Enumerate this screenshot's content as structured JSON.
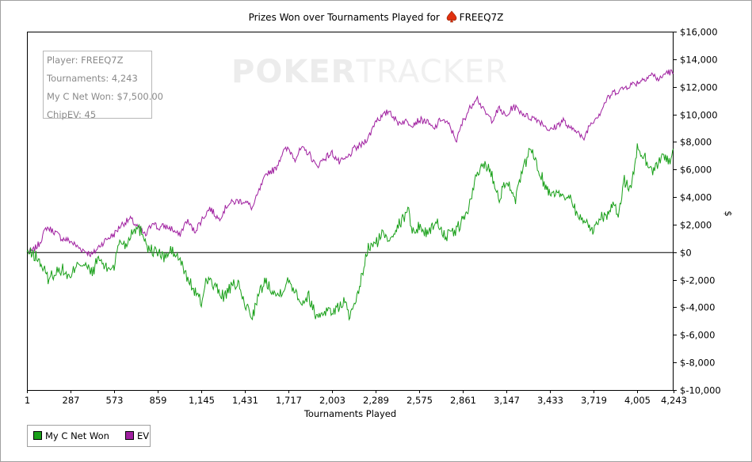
{
  "chart_data": {
    "type": "line",
    "title": "Prizes Won over Tournaments Played for",
    "player_name": "FREEQ7Z",
    "xlabel": "Tournaments Played",
    "ylabel": "$",
    "xlim": [
      1,
      4243
    ],
    "ylim": [
      -10000,
      16000
    ],
    "x_ticks": [
      "1",
      "287",
      "573",
      "859",
      "1,145",
      "1,431",
      "1,717",
      "2,003",
      "2,289",
      "2,575",
      "2,861",
      "3,147",
      "3,433",
      "3,719",
      "4,005",
      "4,243"
    ],
    "y_ticks": [
      "$16,000",
      "$14,000",
      "$12,000",
      "$10,000",
      "$8,000",
      "$6,000",
      "$4,000",
      "$2,000",
      "$0",
      "$-2,000",
      "$-4,000",
      "$-6,000",
      "$-8,000",
      "$-10,000"
    ],
    "y_tick_values": [
      16000,
      14000,
      12000,
      10000,
      8000,
      6000,
      4000,
      2000,
      0,
      -2000,
      -4000,
      -6000,
      -8000,
      -10000
    ],
    "grid": false,
    "legend_position": "bottom-left",
    "series": [
      {
        "name": "My C Net Won",
        "color": "#19a019",
        "x": [
          1,
          60,
          100,
          140,
          180,
          230,
          287,
          330,
          380,
          430,
          470,
          520,
          573,
          610,
          650,
          700,
          760,
          800,
          859,
          900,
          950,
          1000,
          1050,
          1100,
          1145,
          1180,
          1230,
          1290,
          1340,
          1380,
          1431,
          1480,
          1520,
          1560,
          1600,
          1640,
          1717,
          1760,
          1800,
          1850,
          1900,
          1960,
          2003,
          2040,
          2080,
          2120,
          2160,
          2200,
          2240,
          2289,
          2330,
          2380,
          2420,
          2460,
          2500,
          2540,
          2575,
          2620,
          2660,
          2700,
          2750,
          2800,
          2861,
          2900,
          2950,
          3000,
          3040,
          3100,
          3147,
          3200,
          3250,
          3300,
          3350,
          3400,
          3433,
          3480,
          3520,
          3560,
          3600,
          3650,
          3680,
          3719,
          3760,
          3800,
          3840,
          3880,
          3920,
          3960,
          4005,
          4050,
          4100,
          4150,
          4190,
          4220,
          4243
        ],
        "y": [
          0,
          -300,
          -1000,
          -1900,
          -1500,
          -1200,
          -2000,
          -600,
          -1000,
          -1500,
          -400,
          -1200,
          -1000,
          900,
          500,
          1800,
          1500,
          200,
          0,
          -400,
          100,
          -500,
          -1800,
          -2800,
          -3700,
          -1800,
          -2500,
          -3200,
          -2600,
          -2200,
          -3800,
          -4600,
          -3200,
          -2100,
          -2500,
          -3200,
          -2100,
          -2700,
          -3600,
          -3200,
          -4700,
          -4200,
          -4300,
          -4100,
          -3500,
          -4700,
          -3800,
          -1600,
          300,
          600,
          1300,
          1000,
          1800,
          2200,
          3200,
          1200,
          2000,
          1300,
          1900,
          2100,
          1100,
          1400,
          2300,
          3200,
          5500,
          6500,
          5900,
          4000,
          5300,
          3600,
          5700,
          7500,
          6300,
          4800,
          4300,
          4500,
          3800,
          4300,
          3000,
          2200,
          2100,
          1500,
          2700,
          2600,
          3300,
          2800,
          5200,
          4500,
          7500,
          7000,
          5800,
          6600,
          7100,
          6400,
          7500
        ]
      },
      {
        "name": "EV",
        "color": "#a020a0",
        "x": [
          1,
          40,
          80,
          130,
          180,
          230,
          287,
          330,
          380,
          430,
          480,
          530,
          573,
          620,
          680,
          730,
          780,
          830,
          859,
          900,
          950,
          1000,
          1050,
          1100,
          1145,
          1200,
          1260,
          1320,
          1380,
          1431,
          1480,
          1530,
          1580,
          1630,
          1680,
          1717,
          1760,
          1800,
          1850,
          1900,
          1950,
          2003,
          2050,
          2100,
          2150,
          2200,
          2250,
          2289,
          2330,
          2380,
          2430,
          2480,
          2530,
          2575,
          2620,
          2670,
          2720,
          2770,
          2820,
          2861,
          2900,
          2950,
          3000,
          3050,
          3100,
          3147,
          3190,
          3240,
          3290,
          3340,
          3390,
          3433,
          3480,
          3520,
          3560,
          3600,
          3650,
          3690,
          3719,
          3760,
          3800,
          3850,
          3900,
          3950,
          4005,
          4050,
          4100,
          4150,
          4200,
          4243
        ],
        "y": [
          0,
          100,
          600,
          1800,
          1500,
          1000,
          800,
          400,
          100,
          -200,
          500,
          1000,
          1300,
          2000,
          2400,
          1800,
          1200,
          2300,
          1700,
          1900,
          1700,
          1200,
          2300,
          1500,
          2300,
          3200,
          2400,
          3500,
          3700,
          3700,
          3200,
          4600,
          5800,
          6000,
          7300,
          7500,
          6800,
          7500,
          7200,
          6200,
          6800,
          7200,
          6500,
          6800,
          7500,
          7800,
          8500,
          9600,
          9800,
          10300,
          9400,
          9500,
          9300,
          9600,
          9500,
          8900,
          9700,
          9200,
          8100,
          9500,
          10300,
          11300,
          10200,
          9600,
          10400,
          9800,
          10600,
          10200,
          9800,
          9700,
          9300,
          8800,
          9200,
          9600,
          8900,
          9000,
          8100,
          9200,
          9600,
          10100,
          11000,
          11600,
          11800,
          12100,
          12300,
          12600,
          12900,
          12500,
          13100,
          13000
        ]
      }
    ]
  },
  "info_box": {
    "player": "Player: FREEQ7Z",
    "tournaments": "Tournaments: 4,243",
    "net_won": "My C Net Won: $7,500.00",
    "chip_ev": "ChipEV: 45"
  },
  "watermark": {
    "poker": "POKER",
    "tracker": "TRACKER"
  }
}
